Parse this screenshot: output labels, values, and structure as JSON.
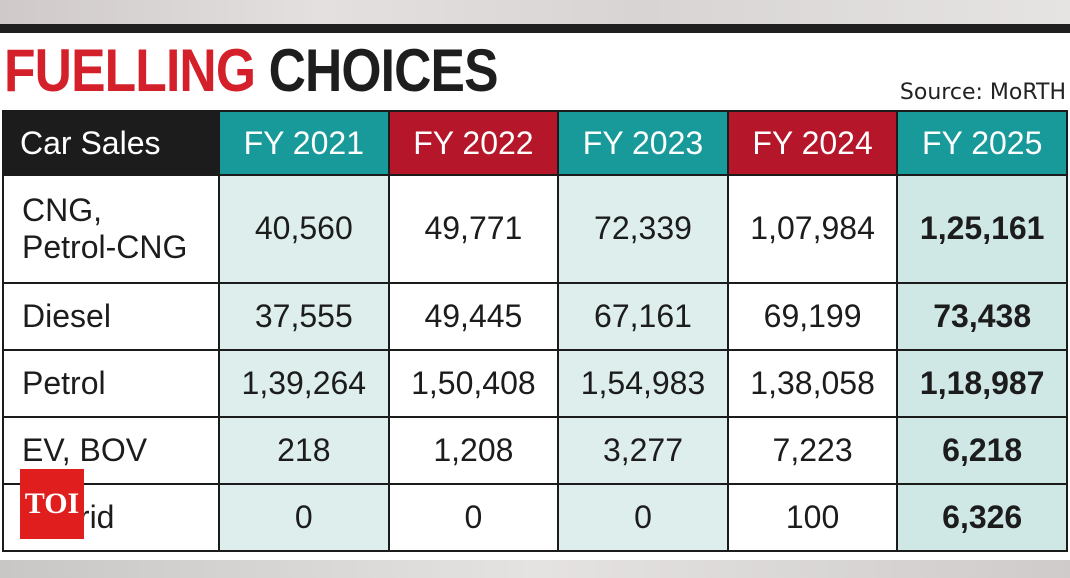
{
  "headline": {
    "word1": "FUELLING",
    "word2": "CHOICES"
  },
  "source": "Source: MoRTH",
  "watermark": "TOI",
  "colors": {
    "teal": "#199a9a",
    "red": "#b5162a",
    "headline_red": "#d4202a",
    "dark": "#1b1b1b"
  },
  "chart_data": {
    "type": "table",
    "title": "FUELLING CHOICES",
    "source": "Source: MoRTH",
    "row_header_title": "Car Sales",
    "columns": [
      "FY 2021",
      "FY 2022",
      "FY 2023",
      "FY 2024",
      "FY 2025"
    ],
    "rows": [
      {
        "label": "CNG, Petrol-CNG",
        "label_line1": "CNG,",
        "label_line2": "Petrol-CNG",
        "values": [
          "40,560",
          "49,771",
          "72,339",
          "1,07,984",
          "1,25,161"
        ]
      },
      {
        "label": "Diesel",
        "values": [
          "37,555",
          "49,445",
          "67,161",
          "69,199",
          "73,438"
        ]
      },
      {
        "label": "Petrol",
        "values": [
          "1,39,264",
          "1,50,408",
          "1,54,983",
          "1,38,058",
          "1,18,987"
        ]
      },
      {
        "label": "EV, BOV",
        "values": [
          "218",
          "1,208",
          "3,277",
          "7,223",
          "6,218"
        ]
      },
      {
        "label": "Hybrid",
        "values": [
          "0",
          "0",
          "0",
          "100",
          "6,326"
        ]
      }
    ],
    "highlighted_column": "FY 2025"
  }
}
